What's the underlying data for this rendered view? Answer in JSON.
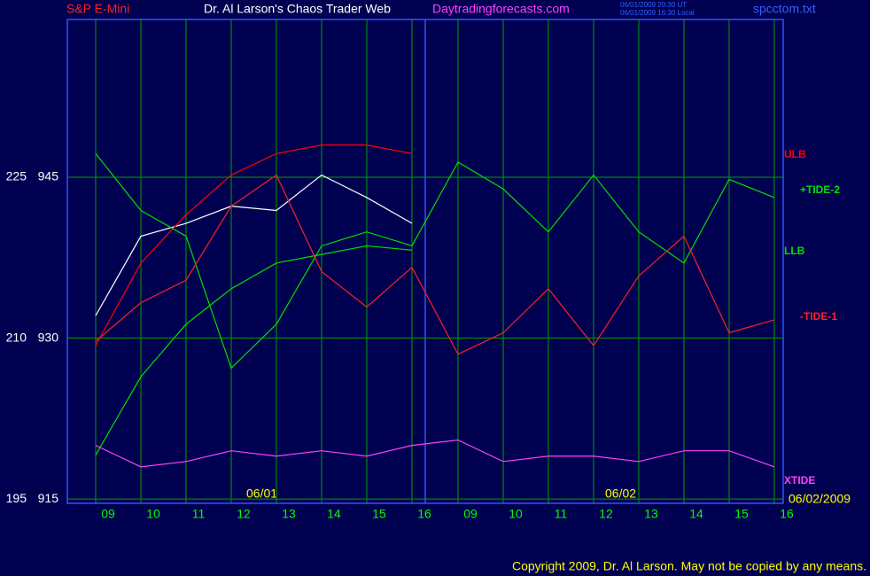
{
  "chart_data": {
    "type": "line",
    "title": "Dr. Al Larson's Chaos Trader Web",
    "instrument": "S&P E-Mini",
    "site": "Daytradingforecasts.com",
    "timestamps": [
      "06/01/2009 20:30 UT",
      "06/01/2009 16:30 Local"
    ],
    "file": "spcctom.txt",
    "date_labels": [
      "06/01",
      "06/02",
      "06/02/2009"
    ],
    "copyright": "Copyright 2009, Dr. Al Larson. May not be copied by any means.",
    "categories": [
      "09",
      "10",
      "11",
      "12",
      "13",
      "14",
      "15",
      "16",
      "09",
      "10",
      "11",
      "12",
      "13",
      "14",
      "15",
      "16"
    ],
    "ylim": [
      914.6,
      959.7
    ],
    "yticks": [
      915,
      930,
      945
    ],
    "y2lim": [
      194.6,
      239.7
    ],
    "y2ticks": [
      195,
      210,
      225
    ],
    "grid": true,
    "series": [
      {
        "color": "#ffffff",
        "values": [
          932.1,
          939.5,
          940.7,
          942.3,
          941.9,
          945.2,
          943.1,
          940.7,
          null,
          null,
          null,
          null,
          null,
          null,
          null,
          null
        ]
      },
      {
        "name": "ULB",
        "color": "#ff0000",
        "values": [
          929.3,
          937.0,
          941.5,
          945.2,
          947.2,
          948.0,
          948.0,
          947.2,
          null,
          null,
          null,
          null,
          null,
          null,
          null,
          null
        ]
      },
      {
        "name": "+TIDE-2",
        "color": "#00e000",
        "values": [
          947.2,
          941.9,
          939.5,
          927.2,
          931.3,
          938.6,
          939.9,
          938.6,
          946.4,
          943.9,
          939.9,
          945.2,
          939.9,
          937.0,
          944.8,
          943.1
        ]
      },
      {
        "name": "LLB",
        "color": "#00e000",
        "values": [
          919.1,
          926.4,
          931.3,
          934.6,
          937.0,
          937.8,
          938.6,
          938.2,
          null,
          null,
          null,
          null,
          null,
          null,
          null,
          null
        ]
      },
      {
        "name": "-TIDE-1",
        "color": "#ff2020",
        "values": [
          929.7,
          933.3,
          935.4,
          942.3,
          945.2,
          936.2,
          932.9,
          936.6,
          928.5,
          930.5,
          934.6,
          929.3,
          935.8,
          939.5,
          930.5,
          931.7
        ]
      },
      {
        "name": "XTIDE",
        "color": "#ff40ff",
        "axis": "y2",
        "values": [
          200,
          198,
          198.5,
          199.5,
          199,
          199.5,
          199,
          200,
          200.5,
          198.5,
          199,
          199,
          198.5,
          199.5,
          199.5,
          198
        ]
      }
    ]
  }
}
